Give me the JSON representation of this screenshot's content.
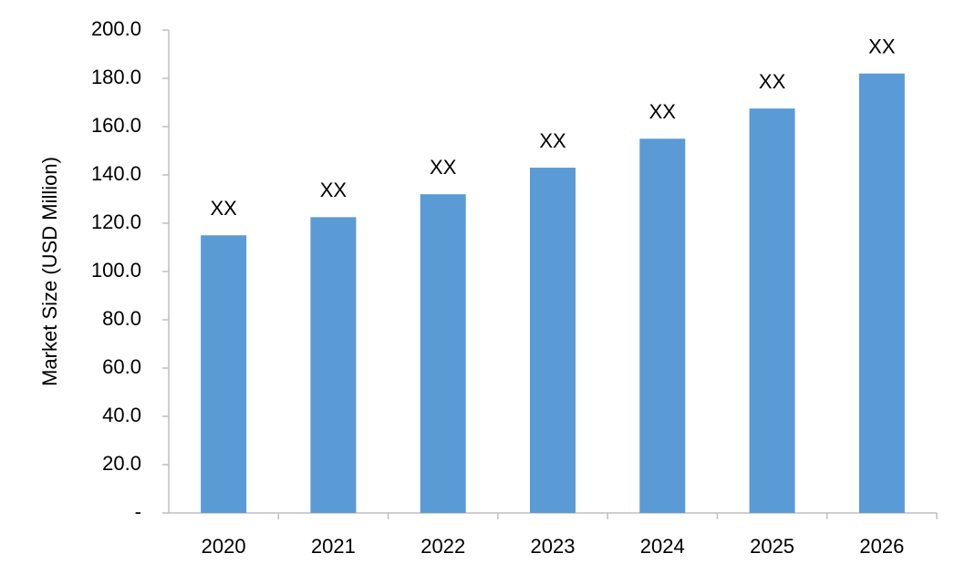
{
  "chart_data": {
    "type": "bar",
    "y_label": "Market Size (USD Million)",
    "categories": [
      "2020",
      "2021",
      "2022",
      "2023",
      "2024",
      "2025",
      "2026"
    ],
    "values": [
      115,
      122.5,
      132,
      143,
      155,
      167.5,
      182
    ],
    "value_labels": [
      "XX",
      "XX",
      "XX",
      "XX",
      "XX",
      "XX",
      "XX"
    ],
    "color": "#5b9bd5",
    "ylim": [
      0,
      200
    ],
    "yticks": [
      {
        "value": 0,
        "label": "-"
      },
      {
        "value": 20,
        "label": "20.0"
      },
      {
        "value": 40,
        "label": "40.0"
      },
      {
        "value": 60,
        "label": "60.0"
      },
      {
        "value": 80,
        "label": "80.0"
      },
      {
        "value": 100,
        "label": "100.0"
      },
      {
        "value": 120,
        "label": "120.0"
      },
      {
        "value": 140,
        "label": "140.0"
      },
      {
        "value": 160,
        "label": "160.0"
      },
      {
        "value": 180,
        "label": "180.0"
      },
      {
        "value": 200,
        "label": "200.0"
      }
    ],
    "grid": false
  }
}
